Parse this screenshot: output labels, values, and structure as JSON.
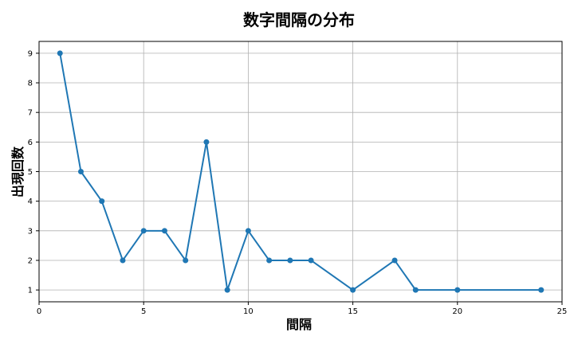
{
  "chart_data": {
    "type": "line",
    "title": "数字間隔の分布",
    "xlabel": "間隔",
    "ylabel": "出現回数",
    "x": [
      1,
      2,
      3,
      4,
      5,
      6,
      7,
      8,
      9,
      10,
      11,
      12,
      13,
      15,
      17,
      18,
      20,
      24
    ],
    "series": [
      {
        "values": [
          9,
          5,
          4,
          2,
          3,
          3,
          2,
          6,
          1,
          3,
          2,
          2,
          2,
          1,
          2,
          1,
          1,
          1
        ]
      }
    ],
    "xlim": [
      0,
      25
    ],
    "ylim": [
      0.6,
      9.4
    ],
    "xticks": [
      "0",
      "5",
      "10",
      "15",
      "20",
      "25"
    ],
    "yticks": [
      "1",
      "2",
      "3",
      "4",
      "5",
      "6",
      "7",
      "8",
      "9"
    ],
    "grid": true,
    "colors": {
      "line": "#1f77b4",
      "grid": "#b0b0b0",
      "axis": "#000000"
    }
  }
}
